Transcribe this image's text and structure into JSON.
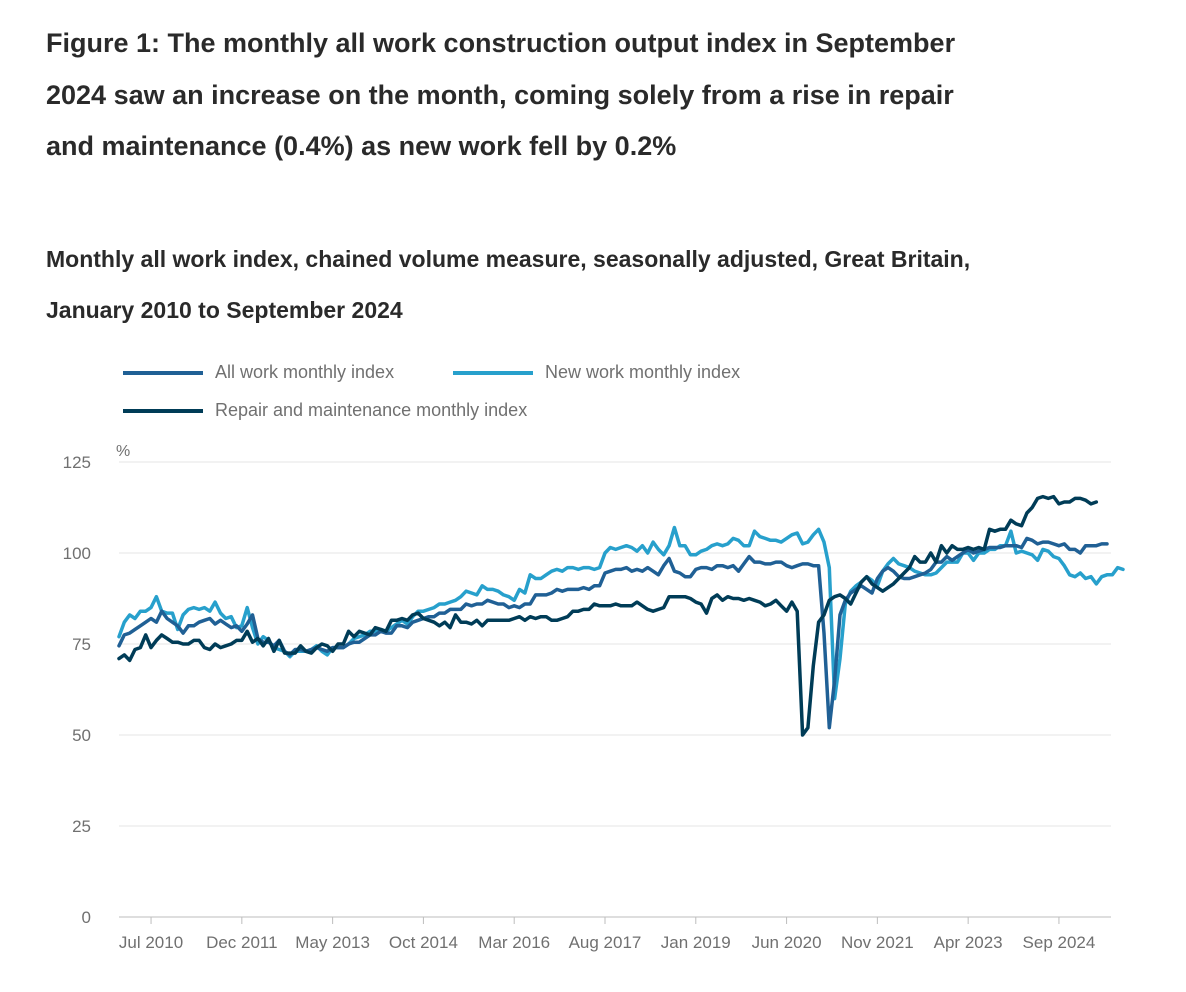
{
  "figure": {
    "title": "Figure 1: The monthly all work construction output index in September 2024 saw an increase on the month, coming solely from a rise in repair and maintenance (0.4%) as new work fell by 0.2%",
    "subtitle": "Monthly all work index, chained volume measure, seasonally adjusted, Great Britain, January 2010 to September 2024"
  },
  "legend": [
    {
      "label": "All work monthly index",
      "color": "#206095"
    },
    {
      "label": "New work monthly index",
      "color": "#27a0cc"
    },
    {
      "label": "Repair and maintenance monthly index",
      "color": "#003c57"
    }
  ],
  "chart_data": {
    "type": "line",
    "title": "Monthly all work index, chained volume measure, seasonally adjusted, Great Britain, January 2010 to September 2024",
    "ylabel": "%",
    "xlabel": "",
    "ylim": [
      0,
      125
    ],
    "yticks": [
      0,
      25,
      50,
      75,
      100,
      125
    ],
    "grid": true,
    "legend_position": "top-left",
    "x_start": "Jan 2010",
    "x_end": "Sep 2024",
    "x_tick_labels": [
      "Jul 2010",
      "Dec 2011",
      "May 2013",
      "Oct 2014",
      "Mar 2016",
      "Aug 2017",
      "Jan 2019",
      "Jun 2020",
      "Nov 2021",
      "Apr 2023",
      "Sep 2024"
    ],
    "series": [
      {
        "name": "All work monthly index",
        "color": "#206095",
        "values": [
          74.5,
          77.5,
          78,
          79,
          80,
          81,
          82,
          81,
          84,
          82,
          81,
          80,
          78,
          80,
          80,
          81,
          81.5,
          82,
          80.5,
          81.5,
          80.5,
          79.5,
          80,
          78.5,
          80.5,
          83,
          76.5,
          75.5,
          75.5,
          74.5,
          76,
          73,
          72,
          73.5,
          73.5,
          73,
          73.5,
          74,
          73.5,
          73,
          74,
          74,
          74,
          75,
          75.5,
          75.5,
          76.5,
          77.5,
          77.5,
          78.5,
          78,
          78,
          80,
          80,
          79.5,
          81,
          81.5,
          82,
          82.5,
          82.5,
          83.5,
          83.5,
          84.5,
          84.5,
          84.5,
          86,
          85.5,
          86,
          86,
          87,
          86.5,
          86,
          86,
          85,
          85.5,
          85,
          86,
          86,
          88.5,
          88.5,
          88.5,
          89,
          90,
          89.5,
          90,
          90,
          90,
          90.5,
          90,
          91,
          91,
          94.5,
          95,
          95.5,
          95.5,
          96,
          95,
          95.5,
          95,
          96,
          95,
          94,
          96.5,
          98.5,
          95,
          94.5,
          93.5,
          93.5,
          95.5,
          96,
          96,
          95.5,
          96.5,
          96.5,
          96,
          96.5,
          95,
          97,
          99,
          97.5,
          97.5,
          97,
          97,
          97.5,
          97.5,
          96.5,
          96,
          96.5,
          97,
          97,
          96.5,
          96.5,
          78,
          52,
          65,
          83,
          87,
          89,
          90,
          91,
          90,
          89,
          93,
          95,
          96,
          95,
          93.5,
          93,
          93,
          93.5,
          94,
          94.5,
          95.5,
          97.5,
          97.5,
          99,
          98,
          99,
          100,
          101,
          100,
          100.5,
          101,
          101.5,
          101.5,
          101.5,
          102,
          102,
          102,
          101.5,
          104,
          103.5,
          102.5,
          103,
          103,
          102.5,
          102,
          102.5,
          101,
          101,
          100,
          102,
          102,
          102,
          102.5,
          102.5
        ]
      },
      {
        "name": "New work monthly index",
        "color": "#27a0cc",
        "values": [
          77,
          81,
          83,
          82,
          84,
          84,
          85,
          88,
          84,
          83.5,
          83.5,
          79,
          83,
          84.5,
          85,
          84.5,
          85,
          84,
          86.5,
          83.5,
          82,
          82.5,
          79.5,
          80,
          85,
          79.5,
          75,
          77,
          76,
          74,
          73.5,
          73,
          71.5,
          73,
          73,
          73,
          73.5,
          74.5,
          73,
          72,
          74,
          74,
          74,
          75,
          76.5,
          77,
          77.5,
          78.5,
          78.5,
          79,
          78.5,
          79.5,
          80.5,
          81.5,
          80.5,
          82.5,
          84,
          84,
          84.5,
          85,
          86,
          86,
          86.5,
          87,
          88,
          89.5,
          89,
          88.5,
          91,
          90,
          90,
          89.5,
          88.5,
          88,
          87,
          90,
          89,
          94,
          93,
          93,
          94,
          95,
          95.5,
          95,
          96,
          96,
          95.5,
          96,
          96,
          95.5,
          96,
          100,
          101.5,
          101,
          101.5,
          102,
          101.5,
          100.5,
          102,
          100,
          103,
          101,
          99.5,
          102,
          107,
          102,
          102,
          99.5,
          99.5,
          100.5,
          101,
          102,
          102.5,
          102,
          102.5,
          104,
          103.5,
          102,
          102,
          106,
          104.5,
          104,
          103.5,
          103.5,
          103,
          104,
          105,
          105.5,
          102.5,
          103,
          105,
          106.5,
          103,
          96,
          60,
          71,
          86,
          89.5,
          91,
          92,
          93.5,
          92.5,
          91,
          95,
          97,
          98.5,
          97,
          96.5,
          96,
          95,
          94.5,
          94,
          94,
          94.5,
          96,
          97.5,
          97.5,
          97.5,
          100,
          100,
          98,
          100,
          100,
          101,
          101,
          102,
          102,
          106,
          100,
          100.5,
          100,
          99.5,
          98,
          101,
          100.5,
          99,
          98.5,
          96.5,
          94,
          93.5,
          94.5,
          93,
          93.5,
          91.5,
          93.5,
          94,
          94,
          96,
          95.5
        ]
      },
      {
        "name": "Repair and maintenance monthly index",
        "color": "#003c57",
        "values": [
          71,
          72,
          70.5,
          73.5,
          74,
          77.5,
          74,
          76,
          77.5,
          76.5,
          75.5,
          75.5,
          75,
          75,
          76,
          76,
          74,
          73.5,
          75,
          74,
          74.5,
          75,
          76,
          76,
          78.5,
          75.5,
          76.5,
          74.5,
          76.5,
          73,
          76,
          72.5,
          72.5,
          72.5,
          74.5,
          73,
          72.5,
          74,
          75,
          74.5,
          73,
          75,
          75,
          78.5,
          77,
          78.5,
          78,
          77.5,
          79.5,
          79,
          78.5,
          81.5,
          81.5,
          82,
          81.5,
          83,
          83.5,
          82,
          81.5,
          81,
          80,
          81,
          79.5,
          83,
          81,
          81,
          80.5,
          81.5,
          80,
          81.5,
          81.5,
          81.5,
          81.5,
          81.5,
          82,
          82.5,
          81.5,
          82.5,
          82,
          82.5,
          82.5,
          81.5,
          81.5,
          82,
          82.5,
          84,
          84,
          84.5,
          84.5,
          86,
          85.5,
          85.5,
          85.5,
          86,
          85.5,
          85.5,
          85.5,
          86.5,
          85.5,
          84.5,
          84,
          84.5,
          85,
          88,
          88,
          88,
          88,
          87.5,
          86.5,
          86,
          83.5,
          87.5,
          88.5,
          87,
          88,
          87.5,
          87.5,
          87,
          87.5,
          87,
          86.5,
          85.5,
          86,
          87,
          85.5,
          84,
          86.5,
          84,
          50,
          52,
          69,
          81,
          83,
          87,
          88,
          88.5,
          87.5,
          86,
          89,
          92,
          93.5,
          91.5,
          90.5,
          89.5,
          90.5,
          91.5,
          93,
          94.5,
          96,
          99,
          97.5,
          97.5,
          100,
          97.5,
          102,
          100,
          102,
          101,
          101,
          101.5,
          101,
          101.5,
          101,
          106.5,
          106,
          106.5,
          106.5,
          109,
          108,
          107.5,
          111,
          112.5,
          115,
          115.5,
          115,
          115.5,
          113.5,
          114,
          114,
          115,
          115,
          114.5,
          113.5,
          114
        ]
      }
    ]
  }
}
